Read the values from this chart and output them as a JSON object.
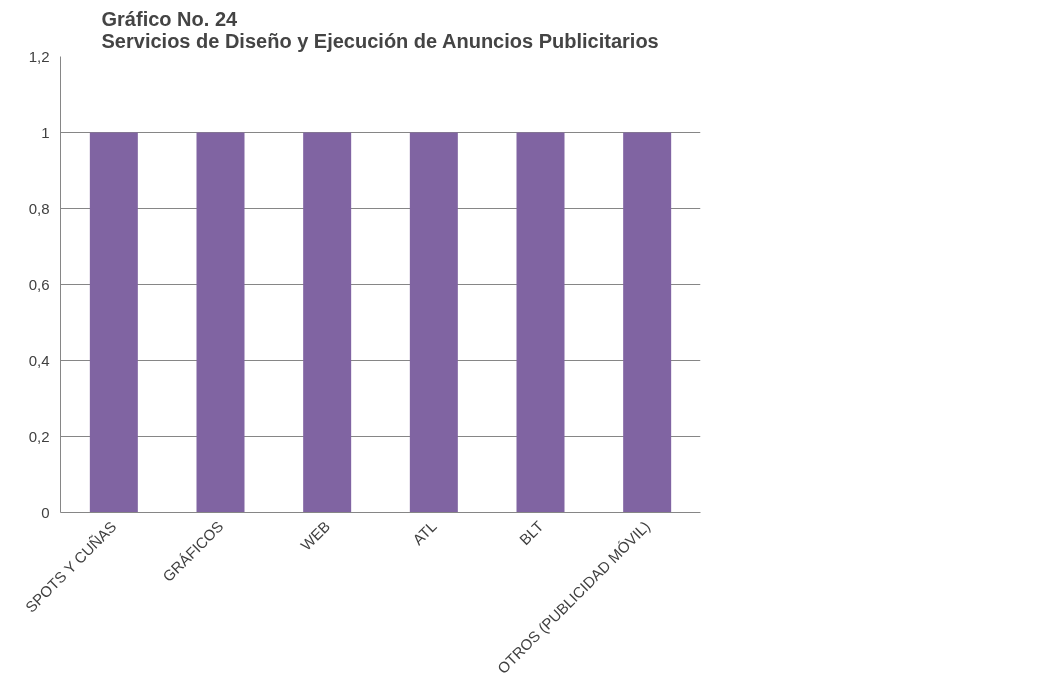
{
  "chart_data": {
    "type": "bar",
    "title": "Gráfico No. 24\nServicios de Diseño y Ejecución de Anuncios Publicitarios",
    "categories": [
      "SPOTS Y CUÑAS",
      "GRÁFICOS",
      "WEB",
      "ATL",
      "BLT",
      "OTROS (PUBLICIDAD MÓVIL)"
    ],
    "series": [
      {
        "color": "#8064a2",
        "values": [
          1,
          1,
          1,
          1,
          1,
          1
        ]
      }
    ],
    "ylim": [
      0,
      1.2
    ],
    "yticks": [
      0,
      {
        "value": 0.2,
        "label": "0,2"
      },
      {
        "value": 0.4,
        "label": "0,4"
      },
      {
        "value": 0.6,
        "label": "0,6"
      },
      {
        "value": 0.8,
        "label": "0,8"
      },
      1,
      {
        "value": 1.2,
        "label": "1,2"
      }
    ],
    "grid": "y"
  }
}
